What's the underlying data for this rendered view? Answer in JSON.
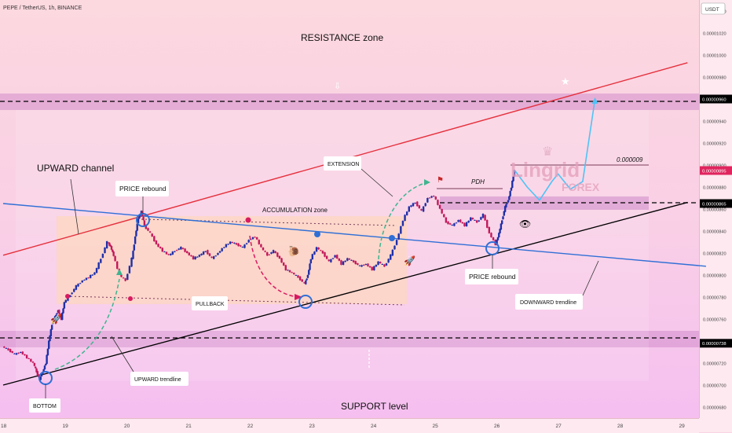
{
  "header": {
    "symbol_line": "PEPE / TetherUS, 1h, BINANCE",
    "currency": "USDT"
  },
  "price_axis": {
    "ticks": [
      "0.00001040",
      "0.00001020",
      "0.00001000",
      "0.00000980",
      "0.00000960",
      "0.00000940",
      "0.00000920",
      "0.00000900",
      "0.00000880",
      "0.00000860",
      "0.00000840",
      "0.00000820",
      "0.00000800",
      "0.00000780",
      "0.00000760",
      "0.00000740",
      "0.00000720",
      "0.00000700",
      "0.00000680"
    ],
    "highlighted": [
      {
        "label": "0.00000960",
        "color": "#000000"
      },
      {
        "label": "0.00000895",
        "color": "#e0245e"
      },
      {
        "label": "0.00000865",
        "color": "#000000"
      },
      {
        "label": "0.00000738",
        "color": "#000000"
      }
    ]
  },
  "time_axis": {
    "ticks": [
      "18",
      "19",
      "20",
      "21",
      "22",
      "23",
      "24",
      "25",
      "26",
      "27",
      "28",
      "29"
    ]
  },
  "annotations": {
    "resistance_zone": "RESISTANCE zone",
    "support_level": "SUPPORT level",
    "upward_channel": "UPWARD channel",
    "accumulation_zone": "ACCUMULATION zone",
    "price_rebound_1": "PRICE rebound",
    "price_rebound_2": "PRICE rebound",
    "extension": "EXTENSION",
    "pullback": "PULLBACK",
    "upward_trendline": "UPWARD trendline",
    "downward_trendline": "DOWNWARD trendline",
    "bottom": "BOTTOM",
    "pdh": "PDH",
    "target_value": "0.000009"
  },
  "watermark": {
    "name": "Lingrid",
    "sub": "FOREX"
  },
  "colors": {
    "resistance_line": "#e5303d",
    "support_trendline": "#000000",
    "downward_trendline": "#2f6fd6",
    "bull_candle": "#1f2fa8",
    "bear_candle": "#c2185b",
    "projection": "#4fc3f7",
    "arrow_green": "#3fb58f",
    "arrow_pink": "#d81b60"
  },
  "chart_data": {
    "type": "candlestick",
    "x_axis": "date (day of month)",
    "y_axis": "price USDT",
    "ylim": [
      6.7e-06,
      1.05e-05
    ],
    "xlim": [
      18,
      29.4
    ],
    "levels": {
      "resistance": 9.6e-06,
      "support": 7.38e-06,
      "breakout": 8.65e-06,
      "last_price": 8.95e-06
    },
    "close_path": [
      [
        18.0,
        7.35e-06
      ],
      [
        18.1,
        7.32e-06
      ],
      [
        18.2,
        7.28e-06
      ],
      [
        18.3,
        7.3e-06
      ],
      [
        18.4,
        7.25e-06
      ],
      [
        18.5,
        7.2e-06
      ],
      [
        18.55,
        7.12e-06
      ],
      [
        18.6,
        7.05e-06
      ],
      [
        18.65,
        7.12e-06
      ],
      [
        18.7,
        7.2e-06
      ],
      [
        18.75,
        7.4e-06
      ],
      [
        18.8,
        7.55e-06
      ],
      [
        18.85,
        7.62e-06
      ],
      [
        18.9,
        7.68e-06
      ],
      [
        18.95,
        7.6e-06
      ],
      [
        19.0,
        7.75e-06
      ],
      [
        19.1,
        7.82e-06
      ],
      [
        19.2,
        7.9e-06
      ],
      [
        19.3,
        7.95e-06
      ],
      [
        19.4,
        7.98e-06
      ],
      [
        19.5,
        8.02e-06
      ],
      [
        19.6,
        8.15e-06
      ],
      [
        19.7,
        8.3e-06
      ],
      [
        19.75,
        8.26e-06
      ],
      [
        19.8,
        8.18e-06
      ],
      [
        19.9,
        8e-06
      ],
      [
        20.0,
        7.95e-06
      ],
      [
        20.1,
        8.15e-06
      ],
      [
        20.15,
        8.35e-06
      ],
      [
        20.2,
        8.52e-06
      ],
      [
        20.25,
        8.58e-06
      ],
      [
        20.3,
        8.45e-06
      ],
      [
        20.4,
        8.38e-06
      ],
      [
        20.5,
        8.28e-06
      ],
      [
        20.6,
        8.22e-06
      ],
      [
        20.7,
        8.18e-06
      ],
      [
        20.8,
        8.22e-06
      ],
      [
        20.9,
        8.25e-06
      ],
      [
        21.0,
        8.2e-06
      ],
      [
        21.1,
        8.15e-06
      ],
      [
        21.2,
        8.18e-06
      ],
      [
        21.3,
        8.22e-06
      ],
      [
        21.4,
        8.15e-06
      ],
      [
        21.5,
        8.2e-06
      ],
      [
        21.6,
        8.26e-06
      ],
      [
        21.7,
        8.3e-06
      ],
      [
        21.8,
        8.28e-06
      ],
      [
        21.9,
        8.25e-06
      ],
      [
        22.0,
        8.32e-06
      ],
      [
        22.1,
        8.35e-06
      ],
      [
        22.2,
        8.25e-06
      ],
      [
        22.3,
        8.18e-06
      ],
      [
        22.4,
        8.22e-06
      ],
      [
        22.5,
        8.15e-06
      ],
      [
        22.6,
        8.05e-06
      ],
      [
        22.7,
        8.02e-06
      ],
      [
        22.8,
        7.98e-06
      ],
      [
        22.9,
        7.92e-06
      ],
      [
        22.95,
        8e-06
      ],
      [
        23.0,
        8.15e-06
      ],
      [
        23.1,
        8.25e-06
      ],
      [
        23.2,
        8.2e-06
      ],
      [
        23.3,
        8.12e-06
      ],
      [
        23.4,
        8.18e-06
      ],
      [
        23.5,
        8.1e-06
      ],
      [
        23.6,
        8.15e-06
      ],
      [
        23.7,
        8.12e-06
      ],
      [
        23.8,
        8.08e-06
      ],
      [
        23.9,
        8.1e-06
      ],
      [
        24.0,
        8.05e-06
      ],
      [
        24.1,
        8.12e-06
      ],
      [
        24.2,
        8.08e-06
      ],
      [
        24.3,
        8.18e-06
      ],
      [
        24.4,
        8.32e-06
      ],
      [
        24.5,
        8.5e-06
      ],
      [
        24.6,
        8.62e-06
      ],
      [
        24.7,
        8.66e-06
      ],
      [
        24.8,
        8.58e-06
      ],
      [
        24.9,
        8.7e-06
      ],
      [
        25.0,
        8.72e-06
      ],
      [
        25.1,
        8.6e-06
      ],
      [
        25.2,
        8.48e-06
      ],
      [
        25.3,
        8.45e-06
      ],
      [
        25.4,
        8.5e-06
      ],
      [
        25.5,
        8.45e-06
      ],
      [
        25.6,
        8.52e-06
      ],
      [
        25.7,
        8.48e-06
      ],
      [
        25.8,
        8.55e-06
      ],
      [
        25.9,
        8.38e-06
      ],
      [
        26.0,
        8.28e-06
      ],
      [
        26.05,
        8.38e-06
      ],
      [
        26.1,
        8.5e-06
      ],
      [
        26.15,
        8.62e-06
      ],
      [
        26.2,
        8.68e-06
      ],
      [
        26.25,
        8.8e-06
      ],
      [
        26.3,
        8.95e-06
      ]
    ],
    "projection_path": [
      [
        26.3,
        8.95e-06
      ],
      [
        26.5,
        8.8e-06
      ],
      [
        26.7,
        8.68e-06
      ],
      [
        26.9,
        8.85e-06
      ],
      [
        27.0,
        8.92e-06
      ],
      [
        27.2,
        8.78e-06
      ],
      [
        27.4,
        8.85e-06
      ],
      [
        27.6,
        9.6e-06
      ]
    ],
    "trendlines": [
      {
        "name": "resistance",
        "from": [
          18.0,
          8.18e-06
        ],
        "to": [
          29.1,
          9.93e-06
        ]
      },
      {
        "name": "upward",
        "from": [
          18.0,
          7e-06
        ],
        "to": [
          29.1,
          8.66e-06
        ]
      },
      {
        "name": "downward",
        "from": [
          18.0,
          8.65e-06
        ],
        "to": [
          29.4,
          8.08e-06
        ]
      }
    ],
    "zones": [
      {
        "name": "resistance",
        "y": [
          9.54e-06,
          9.71e-06
        ]
      },
      {
        "name": "support",
        "y": [
          7.3e-06,
          7.45e-06
        ]
      },
      {
        "name": "breakout",
        "y": [
          8.6e-06,
          8.7e-06
        ]
      }
    ]
  }
}
